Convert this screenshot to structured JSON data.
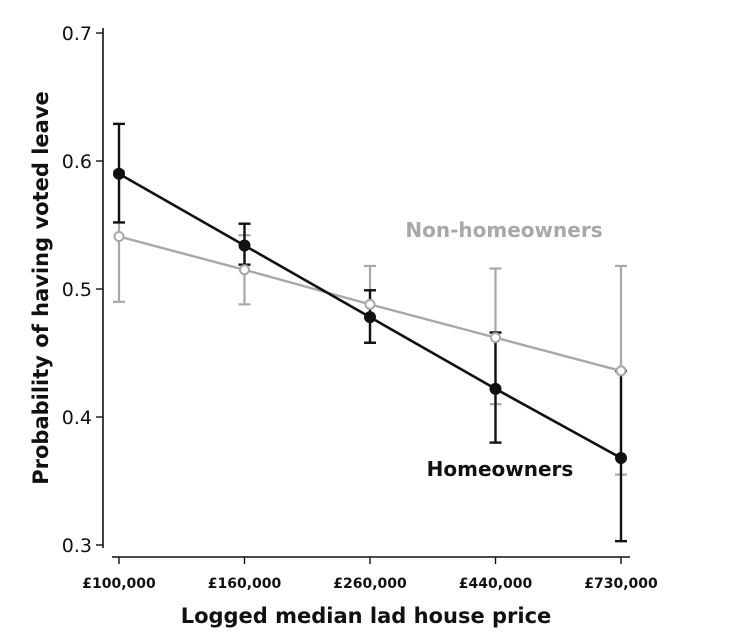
{
  "chart_data": {
    "type": "line",
    "title": "",
    "xlabel": "Logged median lad house price",
    "ylabel": "Probability of having voted leave",
    "categories": [
      "£100,000",
      "£160,000",
      "£260,000",
      "£440,000",
      "£730,000"
    ],
    "y_ticks": [
      "0.3",
      "0.4",
      "0.5",
      "0.6",
      "0.7"
    ],
    "ylim": [
      0.3,
      0.7
    ],
    "grid": false,
    "series": [
      {
        "name": "Non-homeowners",
        "color": "#a8a8a8",
        "marker": "hollow-circle",
        "values": [
          0.541,
          0.515,
          0.488,
          0.462,
          0.436
        ],
        "ci_low": [
          0.49,
          0.488,
          0.458,
          0.41,
          0.355
        ],
        "ci_high": [
          0.592,
          0.542,
          0.518,
          0.516,
          0.518
        ]
      },
      {
        "name": "Homeowners",
        "color": "#111111",
        "marker": "filled-circle",
        "values": [
          0.59,
          0.534,
          0.478,
          0.422,
          0.368
        ],
        "ci_low": [
          0.552,
          0.519,
          0.458,
          0.38,
          0.303
        ],
        "ci_high": [
          0.629,
          0.551,
          0.499,
          0.466,
          0.436
        ]
      }
    ]
  }
}
